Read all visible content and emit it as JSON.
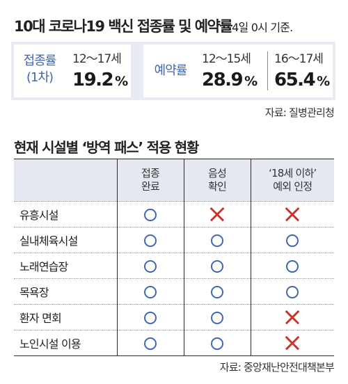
{
  "title": {
    "main": "10대 코로나19 백신 접종률 및 예약률",
    "sub": "4일 0시 기준."
  },
  "vaccination": {
    "label_line1": "접종률",
    "label_line2": "(1차)",
    "age": "12～17세",
    "value": "19.2",
    "unit": "%"
  },
  "reservation": {
    "label": "예약률",
    "groups": [
      {
        "age": "12～15세",
        "value": "28.9",
        "unit": "%"
      },
      {
        "age": "16～17세",
        "value": "65.4",
        "unit": "%"
      }
    ]
  },
  "source_top": "자료: 질병관리청",
  "section_title": "현재 시설별 ‘방역 패스’ 적용 현황",
  "table": {
    "headers": [
      {
        "line1": "접종",
        "line2": "완료"
      },
      {
        "line1": "음성",
        "line2": "확인"
      },
      {
        "line1": "‘18세 이하’",
        "line2": "예외 인정"
      }
    ],
    "rows": [
      {
        "name": "유흥시설",
        "marks": [
          "circle",
          "cross",
          "cross"
        ]
      },
      {
        "name": "실내체육시설",
        "marks": [
          "circle",
          "circle",
          "circle"
        ]
      },
      {
        "name": "노래연습장",
        "marks": [
          "circle",
          "circle",
          "circle"
        ]
      },
      {
        "name": "목욕장",
        "marks": [
          "circle",
          "circle",
          "circle"
        ]
      },
      {
        "name": "환자 면회",
        "marks": [
          "circle",
          "circle",
          "cross"
        ]
      },
      {
        "name": "노인시설 이용",
        "marks": [
          "circle",
          "circle",
          "cross"
        ]
      }
    ]
  },
  "source_bottom": "자료: 중앙재난안전대책본부",
  "colors": {
    "accent_blue": "#3f67b1",
    "cross_red": "#c8362e",
    "panel_bg": "#e8ebf2"
  }
}
